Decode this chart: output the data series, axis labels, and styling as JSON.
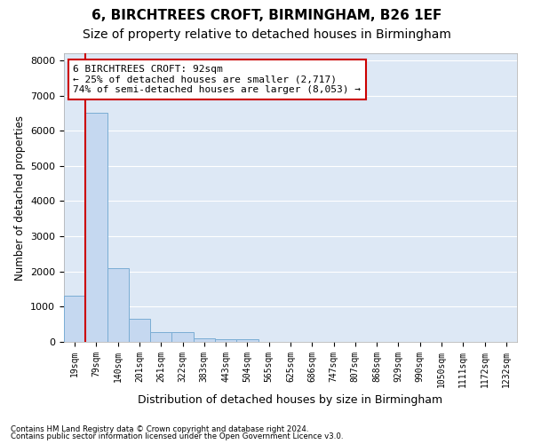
{
  "title1": "6, BIRCHTREES CROFT, BIRMINGHAM, B26 1EF",
  "title2": "Size of property relative to detached houses in Birmingham",
  "xlabel": "Distribution of detached houses by size in Birmingham",
  "ylabel": "Number of detached properties",
  "footnote1": "Contains HM Land Registry data © Crown copyright and database right 2024.",
  "footnote2": "Contains public sector information licensed under the Open Government Licence v3.0.",
  "bar_labels": [
    "19sqm",
    "79sqm",
    "140sqm",
    "201sqm",
    "261sqm",
    "322sqm",
    "383sqm",
    "443sqm",
    "504sqm",
    "565sqm",
    "625sqm",
    "686sqm",
    "747sqm",
    "807sqm",
    "868sqm",
    "929sqm",
    "990sqm",
    "1050sqm",
    "1111sqm",
    "1172sqm",
    "1232sqm"
  ],
  "bar_values": [
    1300,
    6500,
    2100,
    650,
    290,
    290,
    110,
    70,
    70,
    0,
    0,
    0,
    0,
    0,
    0,
    0,
    0,
    0,
    0,
    0,
    0
  ],
  "bar_color": "#c5d8f0",
  "bar_edge_color": "#7aadd4",
  "vline_color": "#cc0000",
  "annotation_text": "6 BIRCHTREES CROFT: 92sqm\n← 25% of detached houses are smaller (2,717)\n74% of semi-detached houses are larger (8,053) →",
  "annotation_box_color": "#cc0000",
  "ylim": [
    0,
    8200
  ],
  "yticks": [
    0,
    1000,
    2000,
    3000,
    4000,
    5000,
    6000,
    7000,
    8000
  ],
  "background_color": "#dde8f5",
  "grid_color": "#ffffff",
  "fig_bg_color": "#ffffff",
  "title1_fontsize": 11,
  "title2_fontsize": 10,
  "xlabel_fontsize": 9,
  "ylabel_fontsize": 8.5
}
